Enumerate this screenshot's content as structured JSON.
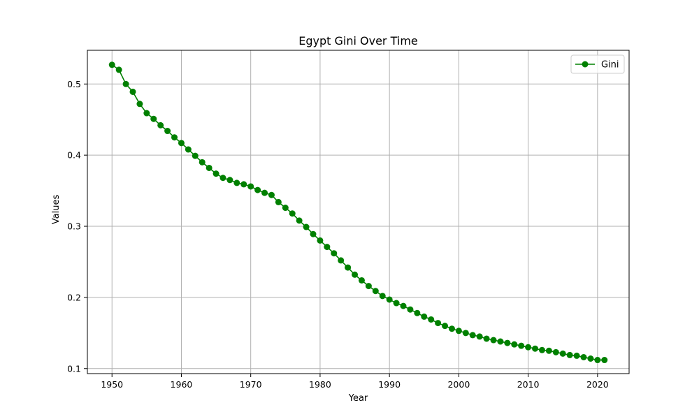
{
  "chart_data": {
    "type": "line",
    "title": "Egypt Gini Over Time",
    "xlabel": "Year",
    "ylabel": "Values",
    "xlim": [
      1946.45,
      2024.55
    ],
    "ylim": [
      0.0929,
      0.5474
    ],
    "xticks": [
      1950,
      1960,
      1970,
      1980,
      1990,
      2000,
      2010,
      2020
    ],
    "yticks": [
      0.1,
      0.2,
      0.3,
      0.4,
      0.5
    ],
    "grid": true,
    "legend_position": "top-right",
    "series": [
      {
        "name": "Gini",
        "color": "#008000",
        "marker": "circle",
        "x": [
          1950,
          1951,
          1952,
          1953,
          1954,
          1955,
          1956,
          1957,
          1958,
          1959,
          1960,
          1961,
          1962,
          1963,
          1964,
          1965,
          1966,
          1967,
          1968,
          1969,
          1970,
          1971,
          1972,
          1973,
          1974,
          1975,
          1976,
          1977,
          1978,
          1979,
          1980,
          1981,
          1982,
          1983,
          1984,
          1985,
          1986,
          1987,
          1988,
          1989,
          1990,
          1991,
          1992,
          1993,
          1994,
          1995,
          1996,
          1997,
          1998,
          1999,
          2000,
          2001,
          2002,
          2003,
          2004,
          2005,
          2006,
          2007,
          2008,
          2009,
          2010,
          2011,
          2012,
          2013,
          2014,
          2015,
          2016,
          2017,
          2018,
          2019,
          2020,
          2021
        ],
        "y": [
          0.527,
          0.52,
          0.5,
          0.489,
          0.472,
          0.459,
          0.451,
          0.442,
          0.434,
          0.425,
          0.417,
          0.408,
          0.399,
          0.39,
          0.382,
          0.374,
          0.368,
          0.365,
          0.361,
          0.359,
          0.356,
          0.351,
          0.347,
          0.344,
          0.334,
          0.326,
          0.318,
          0.308,
          0.299,
          0.289,
          0.28,
          0.271,
          0.262,
          0.252,
          0.242,
          0.232,
          0.224,
          0.216,
          0.209,
          0.202,
          0.197,
          0.192,
          0.188,
          0.183,
          0.178,
          0.173,
          0.169,
          0.164,
          0.16,
          0.156,
          0.153,
          0.15,
          0.147,
          0.145,
          0.142,
          0.14,
          0.138,
          0.136,
          0.134,
          0.132,
          0.13,
          0.128,
          0.126,
          0.125,
          0.123,
          0.121,
          0.119,
          0.118,
          0.116,
          0.114,
          0.112,
          0.112
        ]
      }
    ]
  }
}
